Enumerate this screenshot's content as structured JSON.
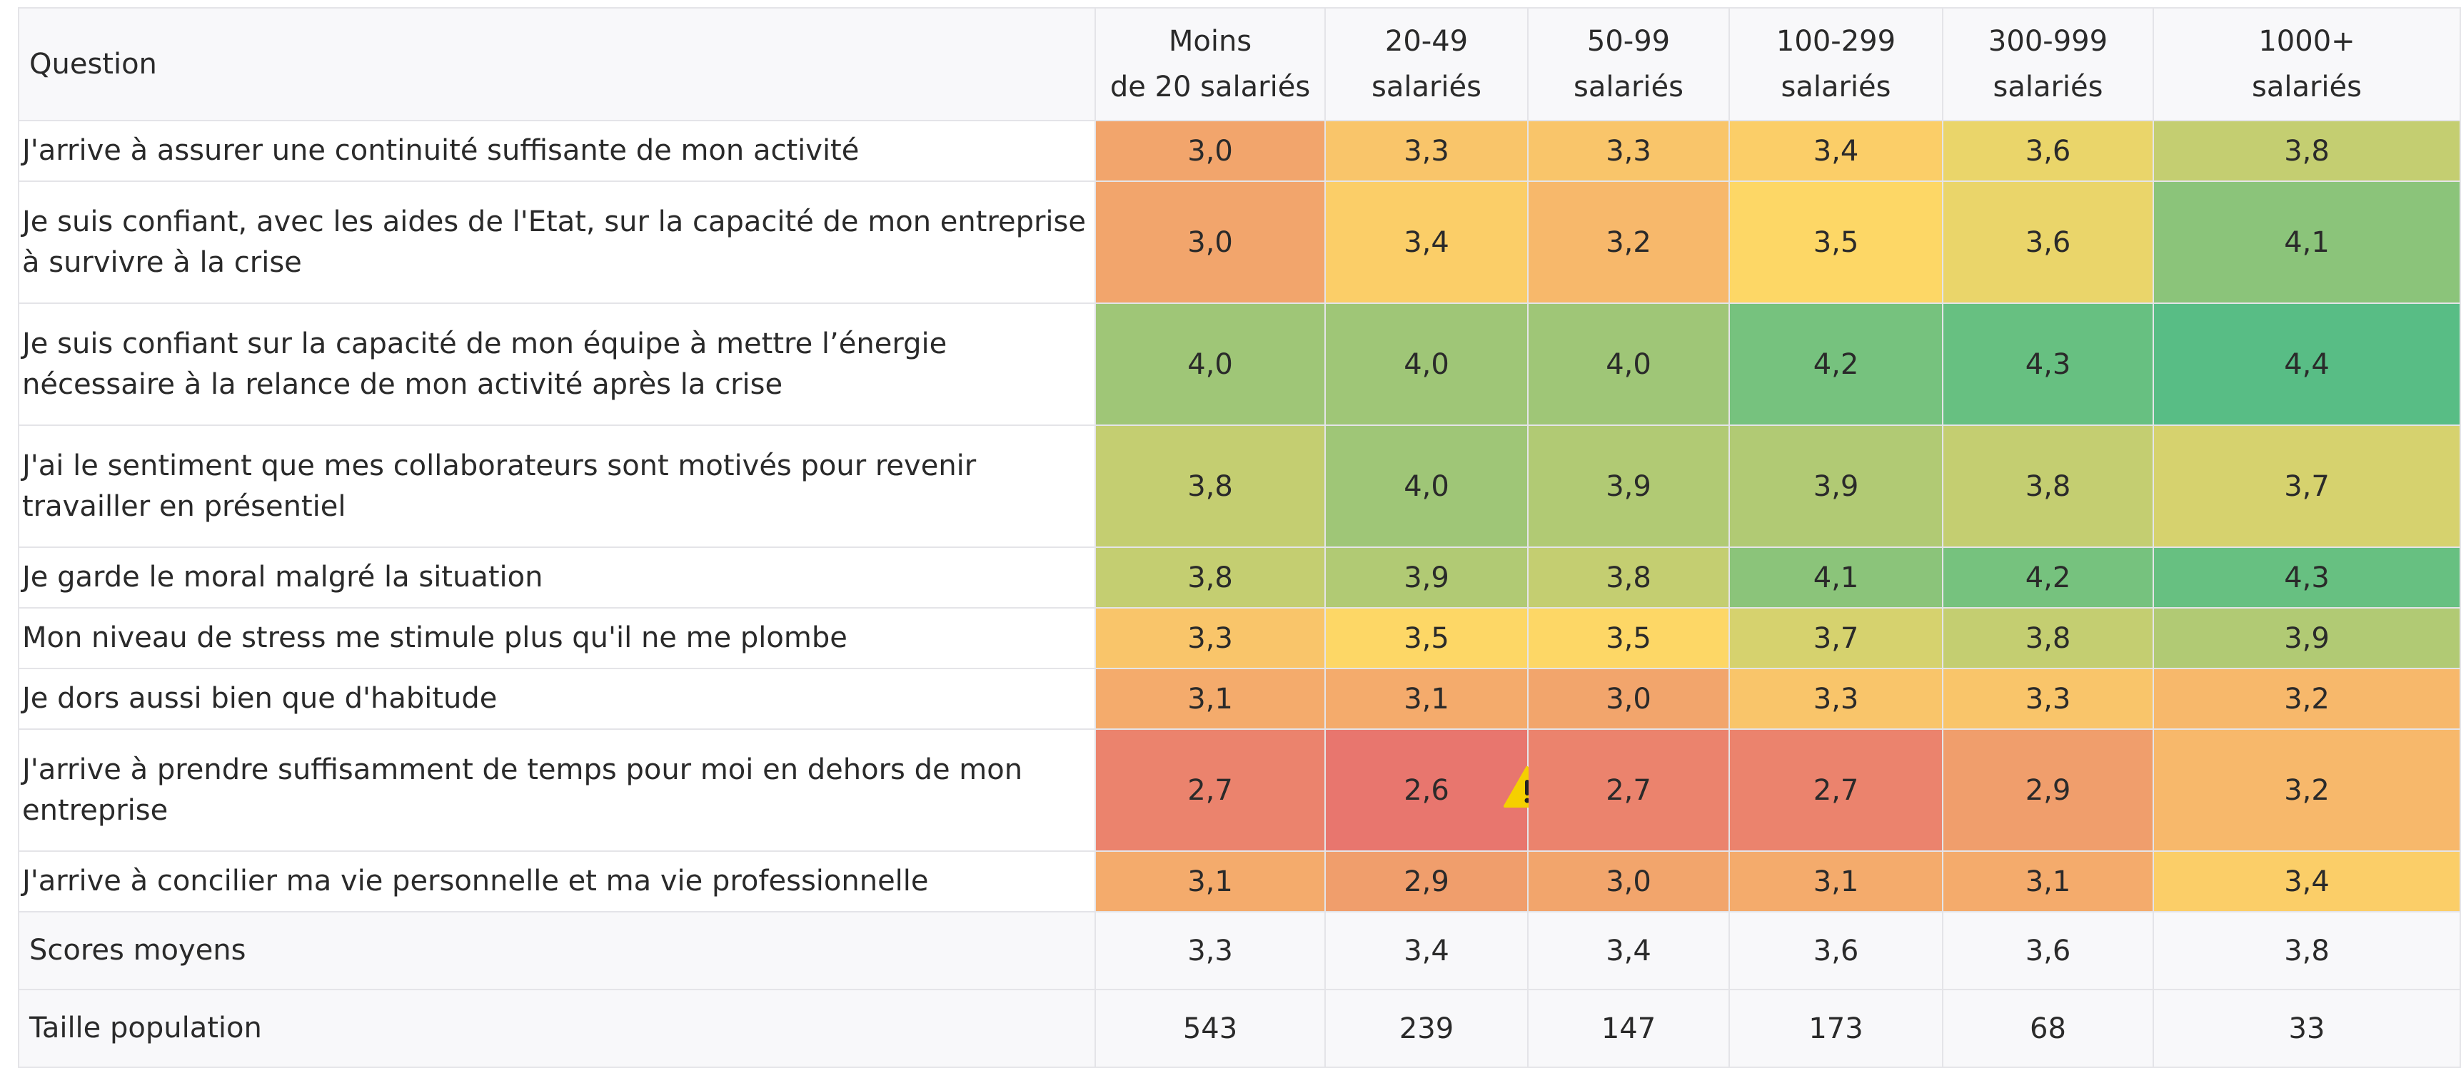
{
  "table": {
    "header": {
      "question": "Question",
      "columns": [
        [
          "Moins",
          "de 20 salariés"
        ],
        [
          "20-49",
          "salariés"
        ],
        [
          "50-99",
          "salariés"
        ],
        [
          "100-299",
          "salariés"
        ],
        [
          "300-999",
          "salariés"
        ],
        [
          "1000+",
          "salariés"
        ]
      ]
    },
    "rows": [
      {
        "question": "J'arrive à assurer une continuité suffisante de mon activité",
        "values": [
          "3,0",
          "3,3",
          "3,3",
          "3,4",
          "3,6",
          "3,8"
        ]
      },
      {
        "question": " Je suis confiant, avec les aides de l'Etat, sur la capacité de mon entreprise à survivre à la crise",
        "values": [
          "3,0",
          "3,4",
          "3,2",
          "3,5",
          "3,6",
          "4,1"
        ]
      },
      {
        "question": " Je suis confiant sur la capacité de mon équipe à mettre l’énergie nécessaire à la relance de mon activité après la crise",
        "values": [
          "4,0",
          "4,0",
          "4,0",
          "4,2",
          "4,3",
          "4,4"
        ]
      },
      {
        "question": " J'ai le sentiment que mes collaborateurs sont motivés pour revenir travailler en présentiel",
        "values": [
          "3,8",
          "4,0",
          "3,9",
          "3,9",
          "3,8",
          "3,7"
        ]
      },
      {
        "question": "Je garde le moral malgré la situation",
        "values": [
          "3,8",
          "3,9",
          "3,8",
          "4,1",
          "4,2",
          "4,3"
        ]
      },
      {
        "question": "Mon niveau de stress me stimule plus qu'il ne me plombe",
        "values": [
          "3,3",
          "3,5",
          "3,5",
          "3,7",
          "3,8",
          "3,9"
        ]
      },
      {
        "question": "Je dors aussi bien que d'habitude",
        "values": [
          "3,1",
          "3,1",
          "3,0",
          "3,3",
          "3,3",
          "3,2"
        ]
      },
      {
        "question": "J'arrive à prendre suffisamment de temps pour moi en dehors de mon entreprise",
        "values": [
          "2,7",
          "2,6",
          "2,7",
          "2,7",
          "2,9",
          "3,2"
        ]
      },
      {
        "question": "J'arrive à concilier ma vie personnelle et ma vie professionnelle",
        "values": [
          "3,1",
          "2,9",
          "3,0",
          "3,1",
          "3,1",
          "3,4"
        ]
      }
    ],
    "footer": [
      {
        "label": "Scores moyens",
        "values": [
          "3,3",
          "3,4",
          "3,4",
          "3,6",
          "3,6",
          "3,8"
        ]
      },
      {
        "label": "Taille population",
        "values": [
          "543",
          "239",
          "147",
          "173",
          "68",
          "33"
        ]
      }
    ]
  }
}
